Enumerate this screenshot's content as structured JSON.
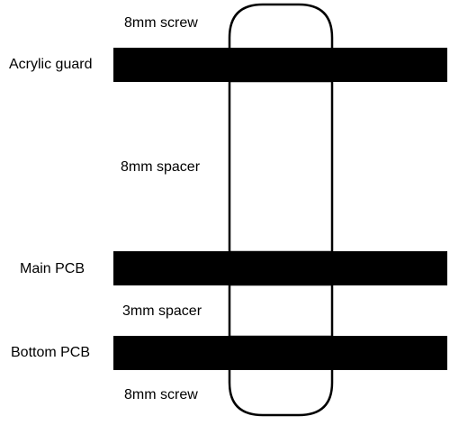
{
  "diagram": {
    "colors": {
      "layer_fill": "#000000",
      "outline": "#000000",
      "background": "#ffffff"
    },
    "layers": [
      {
        "id": "acrylic-guard",
        "label": "Acrylic guard"
      },
      {
        "id": "main-pcb",
        "label": "Main PCB"
      },
      {
        "id": "bottom-pcb",
        "label": "Bottom PCB"
      }
    ],
    "components": [
      {
        "id": "top-screw",
        "label": "8mm screw"
      },
      {
        "id": "spacer-8mm",
        "label": "8mm spacer"
      },
      {
        "id": "spacer-3mm",
        "label": "3mm spacer"
      },
      {
        "id": "bottom-screw",
        "label": "8mm screw"
      }
    ]
  }
}
